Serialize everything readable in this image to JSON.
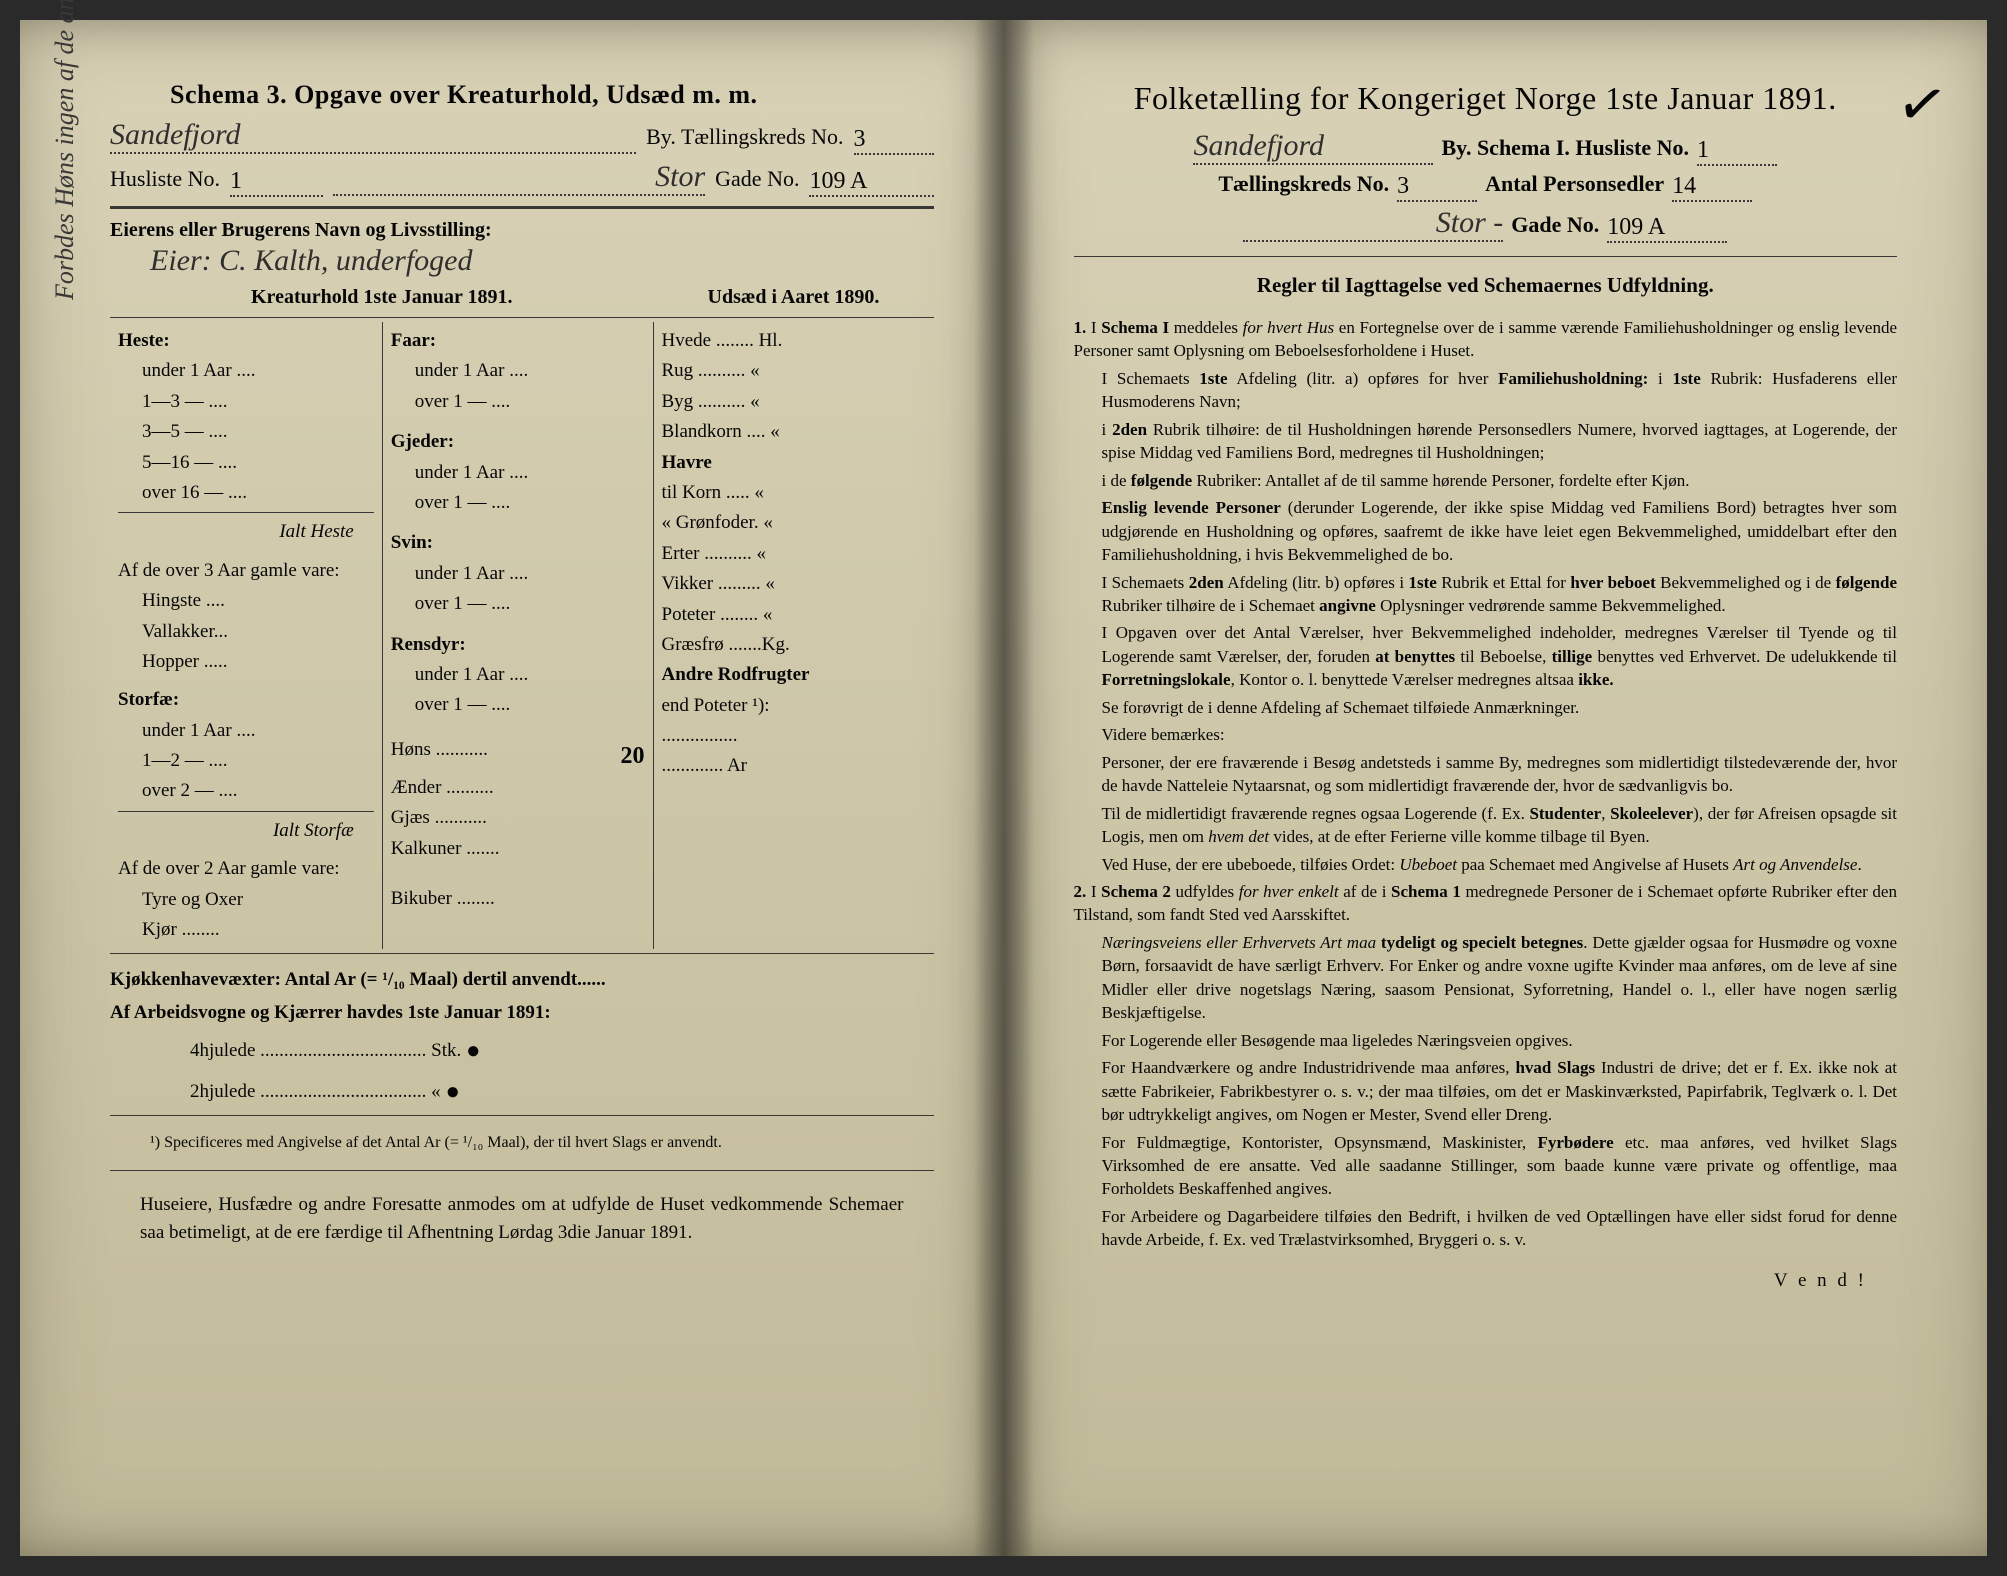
{
  "leftPage": {
    "schemaTitle": "Schema 3.  Opgave over Kreaturhold, Udsæd m. m.",
    "cityHandwritten": "Sandefjord",
    "byLabel": "By.  Tællingskreds No.",
    "kredsNo": "3",
    "huslisteLabel": "Husliste No.",
    "huslisteNo": "1",
    "gadeHandwritten": "Stor",
    "gadeLabel": "Gade No.",
    "gadeNo": "109 A",
    "ownerLabel": "Eierens eller Brugerens Navn og Livsstilling:",
    "ownerHandwritten": "Eier:  C. Kalth, underfoged",
    "colHead1": "Kreaturhold 1ste Januar 1891.",
    "colHead2": "Udsæd i Aaret 1890.",
    "heste": {
      "title": "Heste:",
      "rows": [
        "under 1 Aar ....",
        "1—3   —   ....",
        "3—5   —   ....",
        "5—16  —   ....",
        "over 16 —  ...."
      ],
      "ialt": "Ialt Heste",
      "over3": "Af de over 3 Aar gamle vare:",
      "sub": [
        "Hingste ....",
        "Vallakker...",
        "Hopper ....."
      ]
    },
    "storfae": {
      "title": "Storfæ:",
      "rows": [
        "under 1 Aar ....",
        "1—2   —   ....",
        "over 2  —  ...."
      ],
      "ialt": "Ialt Storfæ",
      "over2": "Af de over 2 Aar gamle vare:",
      "sub": [
        "Tyre og Oxer",
        "Kjør ........"
      ]
    },
    "faar": {
      "title": "Faar:",
      "rows": [
        "under 1 Aar ....",
        "over 1   —   ...."
      ]
    },
    "gjeder": {
      "title": "Gjeder:",
      "rows": [
        "under 1 Aar ....",
        "over 1   —   ...."
      ]
    },
    "svin": {
      "title": "Svin:",
      "rows": [
        "under 1 Aar ....",
        "over 1   —   ...."
      ]
    },
    "rensdyr": {
      "title": "Rensdyr:",
      "rows": [
        "under 1 Aar ....",
        "over 1   —   ...."
      ]
    },
    "poultry": [
      "Høns ...........",
      "Ænder ..........",
      "Gjæs ...........",
      "Kalkuner .......",
      "Bikuber ........"
    ],
    "hensValue": "20",
    "udsaed": [
      "Hvede ........ Hl.",
      "Rug .......... «",
      "Byg .......... «",
      "Blandkorn .... «",
      "Havre",
      "  til Korn ..... «",
      "  «  Grønfoder. «",
      "Erter .......... «",
      "Vikker ......... «",
      "Poteter ........ «",
      "Græsfrø .......Kg.",
      "Andre Rodfrugter",
      "  end Poteter ¹):",
      "................",
      "............. Ar"
    ],
    "kjokken": "Kjøkkenhavevæxter:  Antal Ar (= ¹/₁₀ Maal) dertil anvendt......",
    "arbeidsvogne": "Af Arbeidsvogne og Kjærrer havdes 1ste Januar 1891:",
    "hjul4": "4hjulede ................................... Stk.",
    "hjul2": "2hjulede ...................................  «",
    "footnote": "¹) Specificeres med Angivelse af det Antal Ar (= ¹/₁₀ Maal), der til hvert Slags er anvendt.",
    "footer": "Huseiere, Husfædre og andre Foresatte anmodes om at udfylde de Huset vedkommende Schemaer saa betimeligt, at de ere færdige til Afhentning Lørdag 3die Januar 1891.",
    "marginNote": "Forbdes Høns ingen af de anbankes."
  },
  "rightPage": {
    "title": "Folketælling for Kongeriget Norge 1ste Januar 1891.",
    "cityHandwritten": "Sandefjord",
    "line1": {
      "by": "By.  Schema I.  Husliste No.",
      "val": "1"
    },
    "line2": {
      "kreds": "Tællingskreds No.",
      "kredsVal": "3",
      "antal": "Antal Personsedler",
      "antalVal": "14"
    },
    "line3": {
      "gadeHw": "Stor -",
      "gade": "Gade No.",
      "gadeVal": "109 A"
    },
    "cornerMark": "✓",
    "rulesTitle": "Regler til Iagttagelse ved Schemaernes Udfyldning.",
    "rules": [
      "1. I Schema I meddeles for hvert Hus en Fortegnelse over de i samme værende Familiehusholdninger og enslig levende Personer samt Oplysning om Beboelsesforholdene i Huset.",
      "I Schemaets 1ste Afdeling (litr. a) opføres for hver Familiehusholdning: i 1ste Rubrik: Husfaderens eller Husmoderens Navn;",
      "i 2den Rubrik tilhøire: de til Husholdningen hørende Personsedlers Numere, hvorved iagttages, at Logerende, der spise Middag ved Familiens Bord, medregnes til Husholdningen;",
      "i de følgende Rubriker: Antallet af de til samme hørende Personer, fordelte efter Kjøn.",
      "Enslig levende Personer (derunder Logerende, der ikke spise Middag ved Familiens Bord) betragtes hver som udgjørende en Husholdning og opføres, saafremt de ikke have leiet egen Bekvemmelighed, umiddelbart efter den Familiehusholdning, i hvis Bekvemmelighed de bo.",
      "I Schemaets 2den Afdeling (litr. b) opføres i 1ste Rubrik et Ettal for hver beboet Bekvemmelighed og i de følgende Rubriker tilhøire de i Schemaet angivne Oplysninger vedrørende samme Bekvemmelighed.",
      "I Opgaven over det Antal Værelser, hver Bekvemmelighed indeholder, medregnes Værelser til Tyende og til Logerende samt Værelser, der, foruden at benyttes til Beboelse, tillige benyttes ved Erhvervet. De udelukkende til Forretningslokale, Kontor o. l. benyttede Værelser medregnes altsaa ikke.",
      "Se forøvrigt de i denne Afdeling af Schemaet tilføiede Anmærkninger.",
      "Videre bemærkes:",
      "Personer, der ere fraværende i Besøg andetsteds i samme By, medregnes som midlertidigt tilstedeværende der, hvor de havde Natteleie Nytaarsnat, og som midlertidigt fraværende der, hvor de sædvanligvis bo.",
      "Til de midlertidigt fraværende regnes ogsaa Logerende (f. Ex. Studenter, Skoleelever), der før Afreisen opsagde sit Logis, men om hvem det vides, at de efter Ferierne ville komme tilbage til Byen.",
      "Ved Huse, der ere ubeboede, tilføies Ordet: Ubeboet paa Schemaet med Angivelse af Husets Art og Anvendelse.",
      "2. I Schema 2 udfyldes for hver enkelt af de i Schema 1 medregnede Personer de i Schemaet opførte Rubriker efter den Tilstand, som fandt Sted ved Aarsskiftet.",
      "Næringsveiens eller Erhvervets Art maa tydeligt og specielt betegnes. Dette gjælder ogsaa for Husmødre og voxne Børn, forsaavidt de have særligt Erhverv. For Enker og andre voxne ugifte Kvinder maa anføres, om de leve af sine Midler eller drive nogetslags Næring, saasom Pensionat, Syforretning, Handel o. l., eller have nogen særlig Beskjæftigelse.",
      "For Logerende eller Besøgende maa ligeledes Næringsveien opgives.",
      "For Haandværkere og andre Industridrivende maa anføres, hvad Slags Industri de drive; det er f. Ex. ikke nok at sætte Fabrikeier, Fabrikbestyrer o. s. v.; der maa tilføies, om det er Maskinværksted, Papirfabrik, Teglværk o. l.  Det bør udtrykkeligt angives, om Nogen er Mester, Svend eller Dreng.",
      "For Fuldmægtige, Kontorister, Opsynsmænd, Maskinister, Fyrbødere etc. maa anføres, ved hvilket Slags Virksomhed de ere ansatte. Ved alle saadanne Stillinger, som baade kunne være private og offentlige, maa Forholdets Beskaffenhed angives.",
      "For Arbeidere og Dagarbeidere tilføies den Bedrift, i hvilken de ved Optællingen have eller sidst forud for denne havde Arbeide, f. Ex. ved Trælastvirksomhed, Bryggeri o. s. v."
    ],
    "vend": "V e n d !"
  }
}
